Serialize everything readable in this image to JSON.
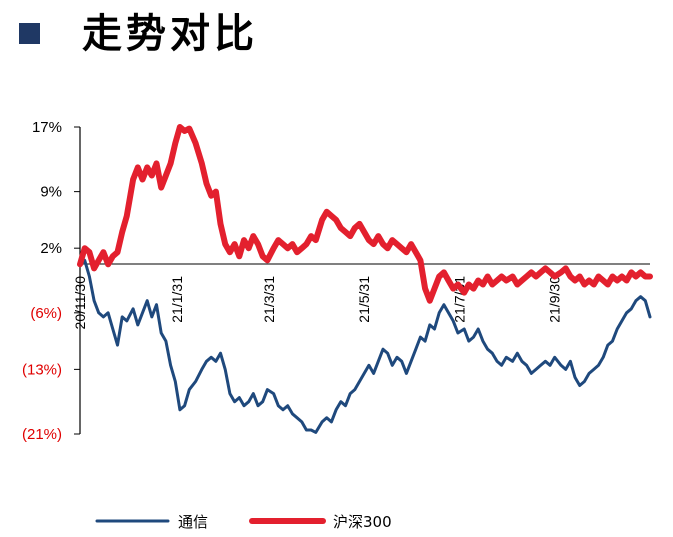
{
  "header": {
    "title": "走势对比"
  },
  "colors": {
    "positive_tick": "#000000",
    "negative_tick": "#e00000",
    "tongxin": "#1f497d",
    "hs300": "#e3202e",
    "marker": "#1f3864"
  },
  "chart_data": {
    "type": "line",
    "title": "",
    "xlabel": "",
    "ylabel": "",
    "ylim": [
      -21,
      17
    ],
    "yticks": [
      {
        "value": 17,
        "label": "17%",
        "negative": false
      },
      {
        "value": 9,
        "label": "9%",
        "negative": false
      },
      {
        "value": 2,
        "label": "2%",
        "negative": false
      },
      {
        "value": -6,
        "label": "(6%)",
        "negative": true
      },
      {
        "value": -13,
        "label": "(13%)",
        "negative": true
      },
      {
        "value": -21,
        "label": "(21%)",
        "negative": true
      }
    ],
    "x_range": [
      "2020-11-30",
      "2021-11-30"
    ],
    "xticks": [
      {
        "date": "2020-11-30",
        "label": "20/11/30"
      },
      {
        "date": "2021-01-31",
        "label": "21/1/31"
      },
      {
        "date": "2021-03-31",
        "label": "21/3/31"
      },
      {
        "date": "2021-05-31",
        "label": "21/5/31"
      },
      {
        "date": "2021-07-31",
        "label": "21/7/31"
      },
      {
        "date": "2021-09-30",
        "label": "21/9/30"
      }
    ],
    "legend_position": "bottom",
    "series": [
      {
        "name": "通信",
        "color": "#1f497d",
        "points": [
          [
            "2020-11-30",
            0.0
          ],
          [
            "2020-12-03",
            0.5
          ],
          [
            "2020-12-06",
            -1.5
          ],
          [
            "2020-12-09",
            -4.5
          ],
          [
            "2020-12-12",
            -6.0
          ],
          [
            "2020-12-15",
            -6.5
          ],
          [
            "2020-12-18",
            -6.0
          ],
          [
            "2020-12-21",
            -8.0
          ],
          [
            "2020-12-24",
            -10.0
          ],
          [
            "2020-12-27",
            -6.5
          ],
          [
            "2020-12-30",
            -7.0
          ],
          [
            "2021-01-03",
            -5.5
          ],
          [
            "2021-01-06",
            -7.5
          ],
          [
            "2021-01-09",
            -6.0
          ],
          [
            "2021-01-12",
            -4.5
          ],
          [
            "2021-01-15",
            -6.5
          ],
          [
            "2021-01-18",
            -5.0
          ],
          [
            "2021-01-21",
            -8.5
          ],
          [
            "2021-01-24",
            -9.5
          ],
          [
            "2021-01-27",
            -12.5
          ],
          [
            "2021-01-30",
            -14.5
          ],
          [
            "2021-02-02",
            -18.0
          ],
          [
            "2021-02-05",
            -17.5
          ],
          [
            "2021-02-08",
            -15.5
          ],
          [
            "2021-02-12",
            -14.5
          ],
          [
            "2021-02-16",
            -13.0
          ],
          [
            "2021-02-19",
            -12.0
          ],
          [
            "2021-02-22",
            -11.5
          ],
          [
            "2021-02-25",
            -12.0
          ],
          [
            "2021-02-28",
            -11.0
          ],
          [
            "2021-03-03",
            -13.0
          ],
          [
            "2021-03-06",
            -16.0
          ],
          [
            "2021-03-09",
            -17.0
          ],
          [
            "2021-03-12",
            -16.5
          ],
          [
            "2021-03-15",
            -17.5
          ],
          [
            "2021-03-18",
            -17.0
          ],
          [
            "2021-03-21",
            -16.0
          ],
          [
            "2021-03-24",
            -17.5
          ],
          [
            "2021-03-27",
            -17.0
          ],
          [
            "2021-03-30",
            -15.5
          ],
          [
            "2021-04-03",
            -16.0
          ],
          [
            "2021-04-06",
            -17.5
          ],
          [
            "2021-04-09",
            -18.0
          ],
          [
            "2021-04-12",
            -17.5
          ],
          [
            "2021-04-15",
            -18.5
          ],
          [
            "2021-04-18",
            -19.0
          ],
          [
            "2021-04-21",
            -19.5
          ],
          [
            "2021-04-24",
            -20.5
          ],
          [
            "2021-04-27",
            -20.5
          ],
          [
            "2021-04-30",
            -20.8
          ],
          [
            "2021-05-04",
            -19.5
          ],
          [
            "2021-05-07",
            -19.0
          ],
          [
            "2021-05-10",
            -19.5
          ],
          [
            "2021-05-13",
            -18.0
          ],
          [
            "2021-05-16",
            -17.0
          ],
          [
            "2021-05-19",
            -17.5
          ],
          [
            "2021-05-22",
            -16.0
          ],
          [
            "2021-05-25",
            -15.5
          ],
          [
            "2021-05-28",
            -14.5
          ],
          [
            "2021-05-31",
            -13.5
          ],
          [
            "2021-06-03",
            -12.5
          ],
          [
            "2021-06-06",
            -13.5
          ],
          [
            "2021-06-09",
            -12.0
          ],
          [
            "2021-06-12",
            -10.5
          ],
          [
            "2021-06-15",
            -11.0
          ],
          [
            "2021-06-18",
            -12.5
          ],
          [
            "2021-06-21",
            -11.5
          ],
          [
            "2021-06-24",
            -12.0
          ],
          [
            "2021-06-27",
            -13.5
          ],
          [
            "2021-06-30",
            -12.0
          ],
          [
            "2021-07-03",
            -10.5
          ],
          [
            "2021-07-06",
            -9.0
          ],
          [
            "2021-07-09",
            -9.5
          ],
          [
            "2021-07-12",
            -7.5
          ],
          [
            "2021-07-15",
            -8.0
          ],
          [
            "2021-07-18",
            -6.0
          ],
          [
            "2021-07-21",
            -5.0
          ],
          [
            "2021-07-24",
            -6.0
          ],
          [
            "2021-07-27",
            -7.0
          ],
          [
            "2021-07-30",
            -8.5
          ],
          [
            "2021-08-03",
            -8.0
          ],
          [
            "2021-08-06",
            -9.5
          ],
          [
            "2021-08-09",
            -9.0
          ],
          [
            "2021-08-12",
            -8.0
          ],
          [
            "2021-08-15",
            -9.5
          ],
          [
            "2021-08-18",
            -10.5
          ],
          [
            "2021-08-21",
            -11.0
          ],
          [
            "2021-08-24",
            -12.0
          ],
          [
            "2021-08-27",
            -12.5
          ],
          [
            "2021-08-30",
            -11.5
          ],
          [
            "2021-09-03",
            -12.0
          ],
          [
            "2021-09-06",
            -11.0
          ],
          [
            "2021-09-09",
            -12.0
          ],
          [
            "2021-09-12",
            -12.5
          ],
          [
            "2021-09-15",
            -13.5
          ],
          [
            "2021-09-18",
            -13.0
          ],
          [
            "2021-09-21",
            -12.5
          ],
          [
            "2021-09-24",
            -12.0
          ],
          [
            "2021-09-27",
            -12.5
          ],
          [
            "2021-09-30",
            -11.5
          ],
          [
            "2021-10-04",
            -12.5
          ],
          [
            "2021-10-07",
            -13.0
          ],
          [
            "2021-10-10",
            -12.0
          ],
          [
            "2021-10-13",
            -14.0
          ],
          [
            "2021-10-16",
            -15.0
          ],
          [
            "2021-10-19",
            -14.5
          ],
          [
            "2021-10-22",
            -13.5
          ],
          [
            "2021-10-25",
            -13.0
          ],
          [
            "2021-10-28",
            -12.5
          ],
          [
            "2021-10-31",
            -11.5
          ],
          [
            "2021-11-03",
            -10.0
          ],
          [
            "2021-11-06",
            -9.5
          ],
          [
            "2021-11-09",
            -8.0
          ],
          [
            "2021-11-12",
            -7.0
          ],
          [
            "2021-11-15",
            -6.0
          ],
          [
            "2021-11-18",
            -5.5
          ],
          [
            "2021-11-21",
            -4.5
          ],
          [
            "2021-11-24",
            -4.0
          ],
          [
            "2021-11-27",
            -4.5
          ],
          [
            "2021-11-30",
            -6.5
          ]
        ]
      },
      {
        "name": "沪深300",
        "color": "#e3202e",
        "points": [
          [
            "2020-11-30",
            0.0
          ],
          [
            "2020-12-03",
            2.0
          ],
          [
            "2020-12-06",
            1.5
          ],
          [
            "2020-12-09",
            -0.5
          ],
          [
            "2020-12-12",
            0.5
          ],
          [
            "2020-12-15",
            1.5
          ],
          [
            "2020-12-18",
            0.0
          ],
          [
            "2020-12-21",
            1.0
          ],
          [
            "2020-12-24",
            1.5
          ],
          [
            "2020-12-27",
            4.0
          ],
          [
            "2020-12-30",
            6.0
          ],
          [
            "2021-01-03",
            10.5
          ],
          [
            "2021-01-06",
            12.0
          ],
          [
            "2021-01-09",
            10.5
          ],
          [
            "2021-01-12",
            12.0
          ],
          [
            "2021-01-15",
            11.0
          ],
          [
            "2021-01-18",
            12.5
          ],
          [
            "2021-01-21",
            9.5
          ],
          [
            "2021-01-24",
            11.0
          ],
          [
            "2021-01-27",
            12.5
          ],
          [
            "2021-01-30",
            15.0
          ],
          [
            "2021-02-02",
            17.0
          ],
          [
            "2021-02-05",
            16.5
          ],
          [
            "2021-02-08",
            16.8
          ],
          [
            "2021-02-12",
            15.0
          ],
          [
            "2021-02-16",
            12.5
          ],
          [
            "2021-02-19",
            10.0
          ],
          [
            "2021-02-22",
            8.5
          ],
          [
            "2021-02-25",
            9.0
          ],
          [
            "2021-02-28",
            5.0
          ],
          [
            "2021-03-03",
            2.5
          ],
          [
            "2021-03-06",
            1.5
          ],
          [
            "2021-03-09",
            2.5
          ],
          [
            "2021-03-12",
            1.0
          ],
          [
            "2021-03-15",
            3.0
          ],
          [
            "2021-03-18",
            2.0
          ],
          [
            "2021-03-21",
            3.5
          ],
          [
            "2021-03-24",
            2.5
          ],
          [
            "2021-03-27",
            1.0
          ],
          [
            "2021-03-30",
            0.5
          ],
          [
            "2021-04-03",
            2.0
          ],
          [
            "2021-04-06",
            3.0
          ],
          [
            "2021-04-09",
            2.5
          ],
          [
            "2021-04-12",
            2.0
          ],
          [
            "2021-04-15",
            2.5
          ],
          [
            "2021-04-18",
            1.5
          ],
          [
            "2021-04-21",
            2.0
          ],
          [
            "2021-04-24",
            2.5
          ],
          [
            "2021-04-27",
            3.5
          ],
          [
            "2021-04-30",
            3.0
          ],
          [
            "2021-05-04",
            5.5
          ],
          [
            "2021-05-07",
            6.5
          ],
          [
            "2021-05-10",
            6.0
          ],
          [
            "2021-05-13",
            5.5
          ],
          [
            "2021-05-16",
            4.5
          ],
          [
            "2021-05-19",
            4.0
          ],
          [
            "2021-05-22",
            3.5
          ],
          [
            "2021-05-25",
            4.5
          ],
          [
            "2021-05-28",
            5.0
          ],
          [
            "2021-05-31",
            4.0
          ],
          [
            "2021-06-03",
            3.0
          ],
          [
            "2021-06-06",
            2.5
          ],
          [
            "2021-06-09",
            3.5
          ],
          [
            "2021-06-12",
            2.5
          ],
          [
            "2021-06-15",
            2.0
          ],
          [
            "2021-06-18",
            3.0
          ],
          [
            "2021-06-21",
            2.5
          ],
          [
            "2021-06-24",
            2.0
          ],
          [
            "2021-06-27",
            1.5
          ],
          [
            "2021-06-30",
            2.5
          ],
          [
            "2021-07-03",
            1.5
          ],
          [
            "2021-07-06",
            0.5
          ],
          [
            "2021-07-09",
            -3.0
          ],
          [
            "2021-07-12",
            -4.5
          ],
          [
            "2021-07-15",
            -3.0
          ],
          [
            "2021-07-18",
            -1.5
          ],
          [
            "2021-07-21",
            -1.0
          ],
          [
            "2021-07-24",
            -2.0
          ],
          [
            "2021-07-27",
            -3.0
          ],
          [
            "2021-07-30",
            -2.5
          ],
          [
            "2021-08-03",
            -3.5
          ],
          [
            "2021-08-06",
            -2.5
          ],
          [
            "2021-08-09",
            -3.0
          ],
          [
            "2021-08-12",
            -2.0
          ],
          [
            "2021-08-15",
            -2.5
          ],
          [
            "2021-08-18",
            -1.5
          ],
          [
            "2021-08-21",
            -2.5
          ],
          [
            "2021-08-24",
            -2.0
          ],
          [
            "2021-08-27",
            -1.5
          ],
          [
            "2021-08-30",
            -2.0
          ],
          [
            "2021-09-03",
            -1.5
          ],
          [
            "2021-09-06",
            -2.5
          ],
          [
            "2021-09-09",
            -2.0
          ],
          [
            "2021-09-12",
            -1.5
          ],
          [
            "2021-09-15",
            -1.0
          ],
          [
            "2021-09-18",
            -1.5
          ],
          [
            "2021-09-21",
            -1.0
          ],
          [
            "2021-09-24",
            -0.5
          ],
          [
            "2021-09-27",
            -1.0
          ],
          [
            "2021-09-30",
            -1.5
          ],
          [
            "2021-10-04",
            -1.0
          ],
          [
            "2021-10-07",
            -0.5
          ],
          [
            "2021-10-10",
            -1.5
          ],
          [
            "2021-10-13",
            -2.0
          ],
          [
            "2021-10-16",
            -1.5
          ],
          [
            "2021-10-19",
            -2.5
          ],
          [
            "2021-10-22",
            -2.0
          ],
          [
            "2021-10-25",
            -2.5
          ],
          [
            "2021-10-28",
            -1.5
          ],
          [
            "2021-10-31",
            -2.0
          ],
          [
            "2021-11-03",
            -2.5
          ],
          [
            "2021-11-06",
            -1.5
          ],
          [
            "2021-11-09",
            -2.0
          ],
          [
            "2021-11-12",
            -1.5
          ],
          [
            "2021-11-15",
            -2.0
          ],
          [
            "2021-11-18",
            -1.0
          ],
          [
            "2021-11-21",
            -1.5
          ],
          [
            "2021-11-24",
            -1.0
          ],
          [
            "2021-11-27",
            -1.5
          ],
          [
            "2021-11-30",
            -1.5
          ]
        ]
      }
    ]
  }
}
